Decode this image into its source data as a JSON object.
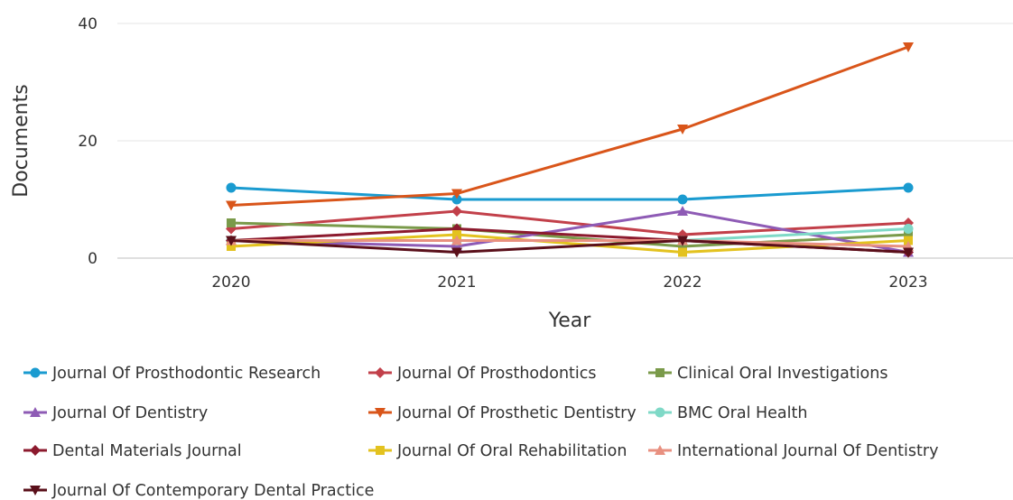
{
  "chart_data": {
    "type": "line",
    "title": "",
    "xlabel": "Year",
    "ylabel": "Documents",
    "x": [
      "2020",
      "2021",
      "2022",
      "2023"
    ],
    "ylim": [
      0,
      40
    ],
    "yticks": [
      0,
      20,
      40
    ],
    "grid": true,
    "legend_position": "bottom",
    "series": [
      {
        "name": "Journal Of Prosthodontic Research",
        "color": "#1a9bd0",
        "marker": "circle",
        "values": [
          12,
          10,
          10,
          12
        ]
      },
      {
        "name": "Journal Of Prosthodontics",
        "color": "#c2404a",
        "marker": "diamond",
        "values": [
          5,
          8,
          4,
          6
        ]
      },
      {
        "name": "Clinical Oral Investigations",
        "color": "#7a9a4a",
        "marker": "square",
        "values": [
          6,
          5,
          2,
          4
        ]
      },
      {
        "name": "Journal Of Dentistry",
        "color": "#8e5bb5",
        "marker": "triangle-up",
        "values": [
          3,
          2,
          8,
          1
        ]
      },
      {
        "name": "Journal Of Prosthetic Dentistry",
        "color": "#d9551a",
        "marker": "triangle-down",
        "values": [
          9,
          11,
          22,
          36
        ]
      },
      {
        "name": "BMC Oral Health",
        "color": "#7fd9c7",
        "marker": "circle",
        "values": [
          3,
          3,
          3,
          5
        ]
      },
      {
        "name": "Dental Materials Journal",
        "color": "#8c1a2e",
        "marker": "diamond",
        "values": [
          3,
          5,
          3,
          1
        ]
      },
      {
        "name": "Journal Of Oral Rehabilitation",
        "color": "#e3c21f",
        "marker": "square",
        "values": [
          2,
          4,
          1,
          3
        ]
      },
      {
        "name": "International Journal Of Dentistry",
        "color": "#e89080",
        "marker": "triangle-up",
        "values": [
          3,
          3,
          3,
          2
        ]
      },
      {
        "name": "Journal Of Contemporary Dental Practice",
        "color": "#5a0f1a",
        "marker": "triangle-down",
        "values": [
          3,
          1,
          3,
          1
        ]
      }
    ]
  }
}
